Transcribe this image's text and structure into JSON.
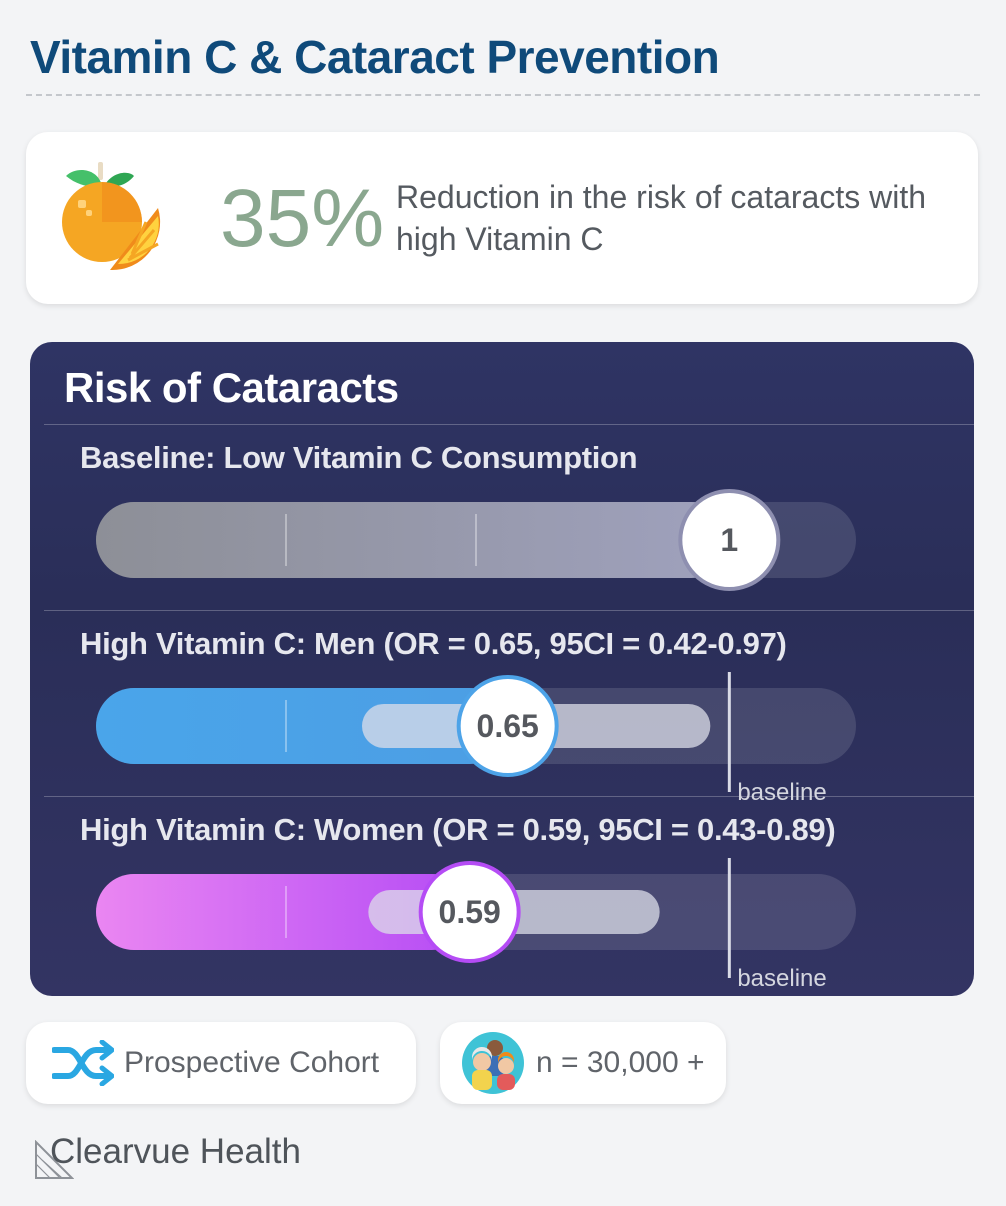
{
  "header": {
    "title": "Vitamin C & Cataract Prevention"
  },
  "stat": {
    "value": "35%",
    "description": "Reduction in the risk of cataracts with high Vitamin C",
    "icon": "orange-fruit-icon"
  },
  "chart_data": {
    "type": "bar",
    "title": "Risk of Cataracts",
    "scale_max": 1.2,
    "baseline_value": 1,
    "baseline_label": "baseline",
    "series": [
      {
        "label": "Baseline: Low Vitamin C Consumption",
        "value": 1,
        "value_label": "1",
        "color": "#9a9cb4"
      },
      {
        "label": "High Vitamin C: Men (OR = 0.65, 95CI = 0.42-0.97)",
        "value": 0.65,
        "value_label": "0.65",
        "ci_low": 0.42,
        "ci_high": 0.97,
        "color": "#4da3e8"
      },
      {
        "label": "High Vitamin C: Women (OR = 0.59, 95CI = 0.43-0.89)",
        "value": 0.59,
        "value_label": "0.59",
        "ci_low": 0.43,
        "ci_high": 0.89,
        "color": "#c25cf5"
      }
    ]
  },
  "footer": {
    "study_type": "Prospective Cohort",
    "study_icon": "shuffle-arrows-icon",
    "sample_size": "n = 30,000 +",
    "people_icon": "people-group-icon",
    "brand": "Clearvue Health"
  }
}
